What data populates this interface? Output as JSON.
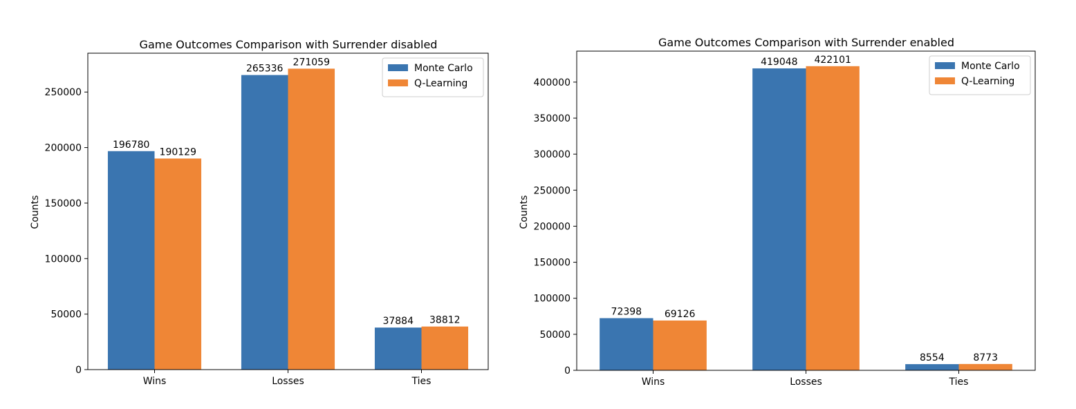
{
  "colors": {
    "monte_carlo": "#3a75b0",
    "q_learning": "#ef8636"
  },
  "chart_data": [
    {
      "type": "bar",
      "title": "Game Outcomes Comparison with Surrender disabled",
      "xlabel": "",
      "ylabel": "Counts",
      "categories": [
        "Wins",
        "Losses",
        "Ties"
      ],
      "series": [
        {
          "name": "Monte Carlo",
          "values": [
            196780,
            265336,
            37884
          ]
        },
        {
          "name": "Q-Learning",
          "values": [
            190129,
            271059,
            38812
          ]
        }
      ],
      "ylim": [
        0,
        285000
      ],
      "yticks": [
        0,
        50000,
        100000,
        150000,
        200000,
        250000
      ],
      "legend": "top-right",
      "grid": false
    },
    {
      "type": "bar",
      "title": "Game Outcomes Comparison with Surrender enabled",
      "xlabel": "",
      "ylabel": "Counts",
      "categories": [
        "Wins",
        "Losses",
        "Ties"
      ],
      "series": [
        {
          "name": "Monte Carlo",
          "values": [
            72398,
            419048,
            8554
          ]
        },
        {
          "name": "Q-Learning",
          "values": [
            69126,
            422101,
            8773
          ]
        }
      ],
      "ylim": [
        0,
        443000
      ],
      "yticks": [
        0,
        50000,
        100000,
        150000,
        200000,
        250000,
        300000,
        350000,
        400000
      ],
      "legend": "top-right",
      "grid": false
    }
  ]
}
